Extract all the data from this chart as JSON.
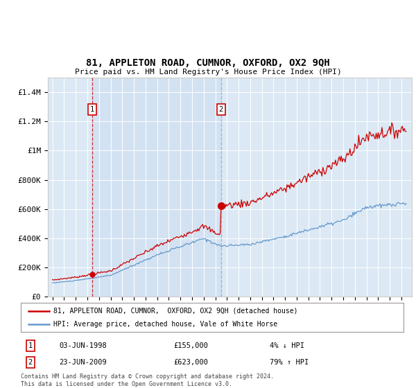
{
  "title": "81, APPLETON ROAD, CUMNOR, OXFORD, OX2 9QH",
  "subtitle": "Price paid vs. HM Land Registry's House Price Index (HPI)",
  "ylim": [
    0,
    1500000
  ],
  "yticks": [
    0,
    200000,
    400000,
    600000,
    800000,
    1000000,
    1200000,
    1400000
  ],
  "ytick_labels": [
    "£0",
    "£200K",
    "£400K",
    "£600K",
    "£800K",
    "£1M",
    "£1.2M",
    "£1.4M"
  ],
  "background_color": "#dce9f5",
  "sale1_date": 1998.43,
  "sale1_price": 155000,
  "sale1_label": "1",
  "sale2_date": 2009.48,
  "sale2_price": 623000,
  "sale2_label": "2",
  "sale1_table": "03-JUN-1998",
  "sale1_price_str": "£155,000",
  "sale1_hpi": "4% ↓ HPI",
  "sale2_table": "23-JUN-2009",
  "sale2_price_str": "£623,000",
  "sale2_hpi": "79% ↑ HPI",
  "legend_label1": "81, APPLETON ROAD, CUMNOR,  OXFORD, OX2 9QH (detached house)",
  "legend_label2": "HPI: Average price, detached house, Vale of White Horse",
  "footer": "Contains HM Land Registry data © Crown copyright and database right 2024.\nThis data is licensed under the Open Government Licence v3.0.",
  "line1_color": "#cc0000",
  "line2_color": "#6699cc",
  "vline1_color": "#cc0000",
  "vline2_color": "#6699cc",
  "box_color": "#cc0000"
}
